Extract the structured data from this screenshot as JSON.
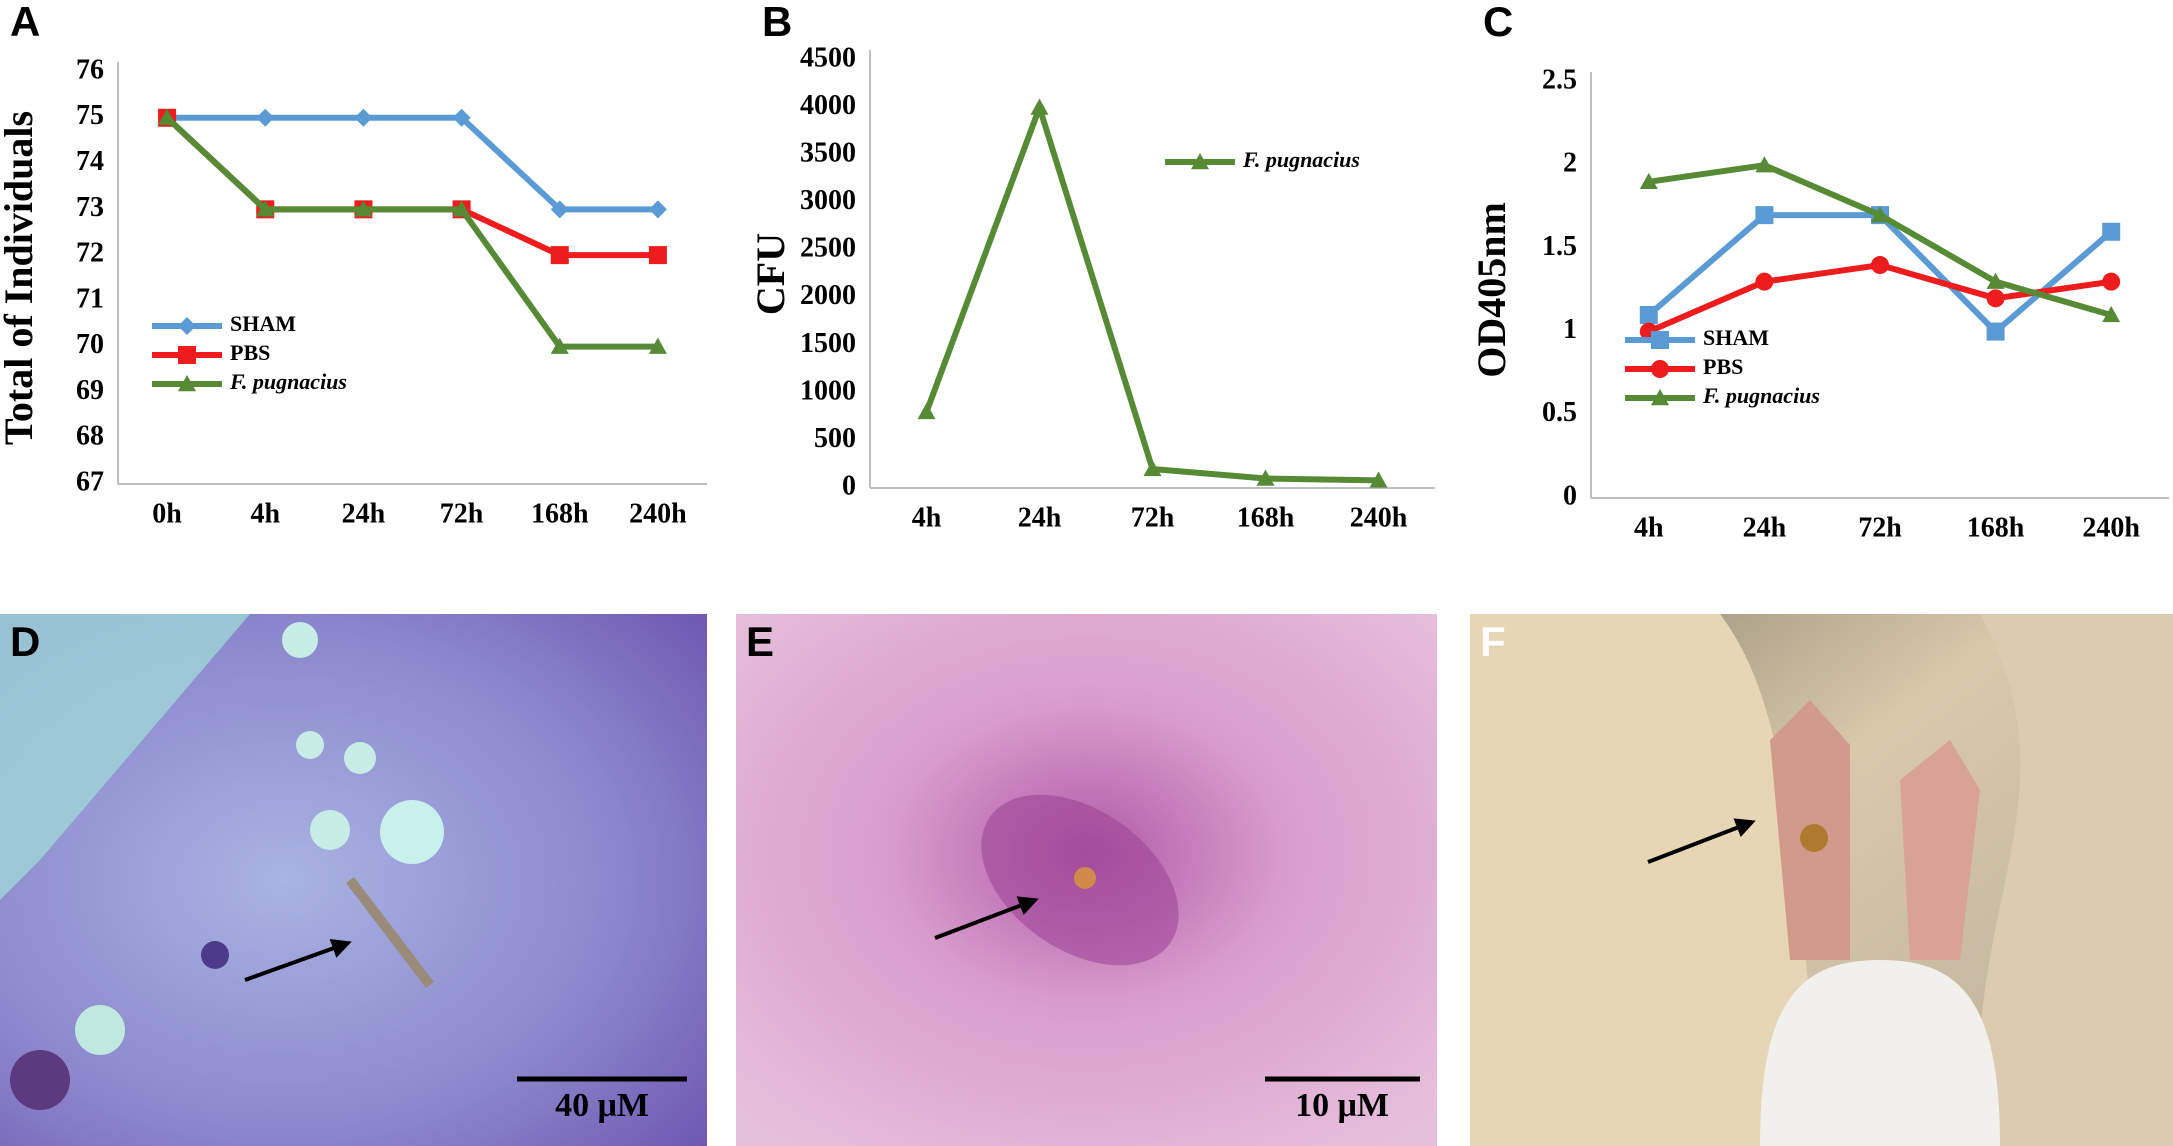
{
  "chart_data": [
    {
      "type": "line",
      "panel": "A",
      "ylabel": "Total of Individuals",
      "categories": [
        "0h",
        "4h",
        "24h",
        "72h",
        "168h",
        "240h"
      ],
      "series": [
        {
          "name": "SHAM",
          "color": "#5b9bd5",
          "marker": "diamond",
          "values": [
            75,
            75,
            75,
            75,
            73,
            73
          ]
        },
        {
          "name": "PBS",
          "color": "#ee1c1c",
          "marker": "square",
          "values": [
            75,
            73,
            73,
            73,
            72,
            72
          ]
        },
        {
          "name": "F. pugnacius",
          "color": "#568a34",
          "marker": "triangle",
          "name_style": "italic",
          "values": [
            75,
            73,
            73,
            73,
            70,
            70
          ]
        }
      ],
      "ylim": [
        67,
        76
      ],
      "yticks": [
        67,
        68,
        69,
        70,
        71,
        72,
        73,
        74,
        75,
        76
      ],
      "grid": false,
      "legend": "lower left"
    },
    {
      "type": "line",
      "panel": "B",
      "ylabel": "CFU",
      "categories": [
        "4h",
        "24h",
        "72h",
        "168h",
        "240h"
      ],
      "series": [
        {
          "name": "F. pugnacius",
          "color": "#568a34",
          "marker": "triangle",
          "name_style": "italic",
          "values": [
            800,
            4000,
            200,
            100,
            80
          ]
        }
      ],
      "ylim": [
        0,
        4500
      ],
      "yticks": [
        0,
        500,
        1000,
        1500,
        2000,
        2500,
        3000,
        3500,
        4000,
        4500
      ],
      "grid": false,
      "legend": "upper right"
    },
    {
      "type": "line",
      "panel": "C",
      "ylabel": "OD405nm",
      "categories": [
        "4h",
        "24h",
        "72h",
        "168h",
        "240h"
      ],
      "series": [
        {
          "name": "SHAM",
          "color": "#5b9bd5",
          "marker": "square",
          "values": [
            1.1,
            1.7,
            1.7,
            1.0,
            1.6
          ]
        },
        {
          "name": "PBS",
          "color": "#ee1c1c",
          "marker": "circle",
          "values": [
            1.0,
            1.3,
            1.4,
            1.2,
            1.3
          ]
        },
        {
          "name": "F. pugnacius",
          "color": "#568a34",
          "marker": "triangle",
          "name_style": "italic",
          "values": [
            1.9,
            2.0,
            1.7,
            1.3,
            1.1
          ]
        }
      ],
      "ylim": [
        0,
        2.5
      ],
      "yticks": [
        0,
        0.5,
        1,
        1.5,
        2,
        2.5
      ],
      "grid": false,
      "legend": "lower left"
    }
  ],
  "images": [
    {
      "label": "D",
      "scale_bar": "40 μM"
    },
    {
      "label": "E",
      "scale_bar": "10 μM"
    },
    {
      "label": "F"
    }
  ]
}
